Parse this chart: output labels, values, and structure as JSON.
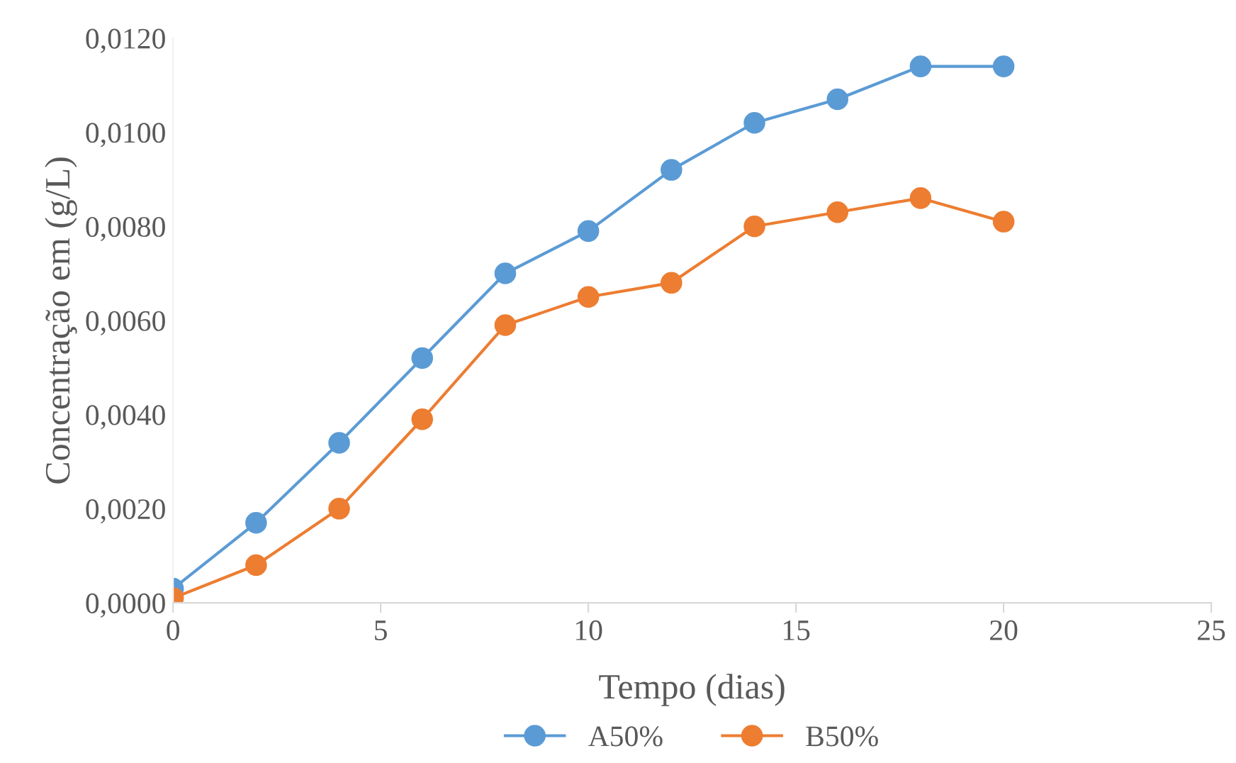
{
  "chart_data": {
    "type": "line",
    "xlabel": "Tempo (dias)",
    "ylabel": "Concentração em (g/L)",
    "x": [
      0,
      2,
      4,
      6,
      8,
      10,
      12,
      14,
      16,
      18,
      20
    ],
    "series": [
      {
        "name": "A50%",
        "color": "#5b9bd5",
        "values": [
          0.0003,
          0.0017,
          0.0034,
          0.0052,
          0.007,
          0.0079,
          0.0092,
          0.0102,
          0.0107,
          0.0114,
          0.0114
        ]
      },
      {
        "name": "B50%",
        "color": "#ed7d31",
        "values": [
          0.0001,
          0.0008,
          0.002,
          0.0039,
          0.0059,
          0.0065,
          0.0068,
          0.008,
          0.0083,
          0.0086,
          0.0081
        ]
      }
    ],
    "xlim": [
      0,
      25
    ],
    "xticks": [
      0,
      5,
      10,
      15,
      20,
      25
    ],
    "ylim": [
      0,
      0.012
    ],
    "yticks": [
      {
        "value": 0,
        "label": "0,0000"
      },
      {
        "value": 0.002,
        "label": "0,0020"
      },
      {
        "value": 0.004,
        "label": "0,0040"
      },
      {
        "value": 0.006,
        "label": "0,0060"
      },
      {
        "value": 0.008,
        "label": "0,0080"
      },
      {
        "value": 0.01,
        "label": "0,0100"
      },
      {
        "value": 0.012,
        "label": "0,0120"
      }
    ],
    "marker": "circle",
    "line_style": "solid",
    "legend": "bottom",
    "grid": false
  }
}
